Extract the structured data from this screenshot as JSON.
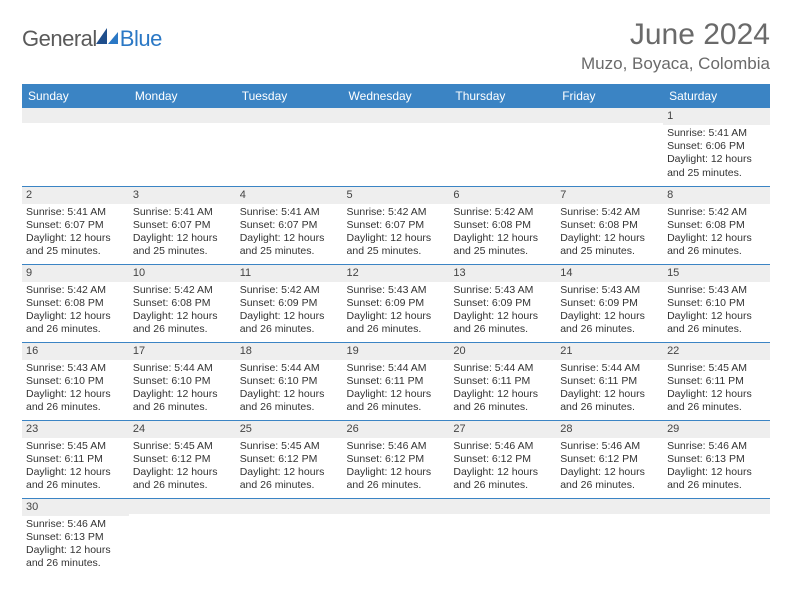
{
  "brand": {
    "general": "General",
    "blue": "Blue"
  },
  "title": "June 2024",
  "location": "Muzo, Boyaca, Colombia",
  "colors": {
    "header_bg": "#3b84c4",
    "header_text": "#ffffff",
    "cell_border": "#3b84c4",
    "daynum_bg": "#eeeeee",
    "text": "#333333",
    "title_text": "#6a6a6a",
    "logo_general": "#5a5a5a",
    "logo_blue": "#2b78c5"
  },
  "day_headers": [
    "Sunday",
    "Monday",
    "Tuesday",
    "Wednesday",
    "Thursday",
    "Friday",
    "Saturday"
  ],
  "weeks": [
    [
      null,
      null,
      null,
      null,
      null,
      null,
      {
        "n": "1",
        "sr": "Sunrise: 5:41 AM",
        "ss": "Sunset: 6:06 PM",
        "d1": "Daylight: 12 hours",
        "d2": "and 25 minutes."
      }
    ],
    [
      {
        "n": "2",
        "sr": "Sunrise: 5:41 AM",
        "ss": "Sunset: 6:07 PM",
        "d1": "Daylight: 12 hours",
        "d2": "and 25 minutes."
      },
      {
        "n": "3",
        "sr": "Sunrise: 5:41 AM",
        "ss": "Sunset: 6:07 PM",
        "d1": "Daylight: 12 hours",
        "d2": "and 25 minutes."
      },
      {
        "n": "4",
        "sr": "Sunrise: 5:41 AM",
        "ss": "Sunset: 6:07 PM",
        "d1": "Daylight: 12 hours",
        "d2": "and 25 minutes."
      },
      {
        "n": "5",
        "sr": "Sunrise: 5:42 AM",
        "ss": "Sunset: 6:07 PM",
        "d1": "Daylight: 12 hours",
        "d2": "and 25 minutes."
      },
      {
        "n": "6",
        "sr": "Sunrise: 5:42 AM",
        "ss": "Sunset: 6:08 PM",
        "d1": "Daylight: 12 hours",
        "d2": "and 25 minutes."
      },
      {
        "n": "7",
        "sr": "Sunrise: 5:42 AM",
        "ss": "Sunset: 6:08 PM",
        "d1": "Daylight: 12 hours",
        "d2": "and 25 minutes."
      },
      {
        "n": "8",
        "sr": "Sunrise: 5:42 AM",
        "ss": "Sunset: 6:08 PM",
        "d1": "Daylight: 12 hours",
        "d2": "and 26 minutes."
      }
    ],
    [
      {
        "n": "9",
        "sr": "Sunrise: 5:42 AM",
        "ss": "Sunset: 6:08 PM",
        "d1": "Daylight: 12 hours",
        "d2": "and 26 minutes."
      },
      {
        "n": "10",
        "sr": "Sunrise: 5:42 AM",
        "ss": "Sunset: 6:08 PM",
        "d1": "Daylight: 12 hours",
        "d2": "and 26 minutes."
      },
      {
        "n": "11",
        "sr": "Sunrise: 5:42 AM",
        "ss": "Sunset: 6:09 PM",
        "d1": "Daylight: 12 hours",
        "d2": "and 26 minutes."
      },
      {
        "n": "12",
        "sr": "Sunrise: 5:43 AM",
        "ss": "Sunset: 6:09 PM",
        "d1": "Daylight: 12 hours",
        "d2": "and 26 minutes."
      },
      {
        "n": "13",
        "sr": "Sunrise: 5:43 AM",
        "ss": "Sunset: 6:09 PM",
        "d1": "Daylight: 12 hours",
        "d2": "and 26 minutes."
      },
      {
        "n": "14",
        "sr": "Sunrise: 5:43 AM",
        "ss": "Sunset: 6:09 PM",
        "d1": "Daylight: 12 hours",
        "d2": "and 26 minutes."
      },
      {
        "n": "15",
        "sr": "Sunrise: 5:43 AM",
        "ss": "Sunset: 6:10 PM",
        "d1": "Daylight: 12 hours",
        "d2": "and 26 minutes."
      }
    ],
    [
      {
        "n": "16",
        "sr": "Sunrise: 5:43 AM",
        "ss": "Sunset: 6:10 PM",
        "d1": "Daylight: 12 hours",
        "d2": "and 26 minutes."
      },
      {
        "n": "17",
        "sr": "Sunrise: 5:44 AM",
        "ss": "Sunset: 6:10 PM",
        "d1": "Daylight: 12 hours",
        "d2": "and 26 minutes."
      },
      {
        "n": "18",
        "sr": "Sunrise: 5:44 AM",
        "ss": "Sunset: 6:10 PM",
        "d1": "Daylight: 12 hours",
        "d2": "and 26 minutes."
      },
      {
        "n": "19",
        "sr": "Sunrise: 5:44 AM",
        "ss": "Sunset: 6:11 PM",
        "d1": "Daylight: 12 hours",
        "d2": "and 26 minutes."
      },
      {
        "n": "20",
        "sr": "Sunrise: 5:44 AM",
        "ss": "Sunset: 6:11 PM",
        "d1": "Daylight: 12 hours",
        "d2": "and 26 minutes."
      },
      {
        "n": "21",
        "sr": "Sunrise: 5:44 AM",
        "ss": "Sunset: 6:11 PM",
        "d1": "Daylight: 12 hours",
        "d2": "and 26 minutes."
      },
      {
        "n": "22",
        "sr": "Sunrise: 5:45 AM",
        "ss": "Sunset: 6:11 PM",
        "d1": "Daylight: 12 hours",
        "d2": "and 26 minutes."
      }
    ],
    [
      {
        "n": "23",
        "sr": "Sunrise: 5:45 AM",
        "ss": "Sunset: 6:11 PM",
        "d1": "Daylight: 12 hours",
        "d2": "and 26 minutes."
      },
      {
        "n": "24",
        "sr": "Sunrise: 5:45 AM",
        "ss": "Sunset: 6:12 PM",
        "d1": "Daylight: 12 hours",
        "d2": "and 26 minutes."
      },
      {
        "n": "25",
        "sr": "Sunrise: 5:45 AM",
        "ss": "Sunset: 6:12 PM",
        "d1": "Daylight: 12 hours",
        "d2": "and 26 minutes."
      },
      {
        "n": "26",
        "sr": "Sunrise: 5:46 AM",
        "ss": "Sunset: 6:12 PM",
        "d1": "Daylight: 12 hours",
        "d2": "and 26 minutes."
      },
      {
        "n": "27",
        "sr": "Sunrise: 5:46 AM",
        "ss": "Sunset: 6:12 PM",
        "d1": "Daylight: 12 hours",
        "d2": "and 26 minutes."
      },
      {
        "n": "28",
        "sr": "Sunrise: 5:46 AM",
        "ss": "Sunset: 6:12 PM",
        "d1": "Daylight: 12 hours",
        "d2": "and 26 minutes."
      },
      {
        "n": "29",
        "sr": "Sunrise: 5:46 AM",
        "ss": "Sunset: 6:13 PM",
        "d1": "Daylight: 12 hours",
        "d2": "and 26 minutes."
      }
    ],
    [
      {
        "n": "30",
        "sr": "Sunrise: 5:46 AM",
        "ss": "Sunset: 6:13 PM",
        "d1": "Daylight: 12 hours",
        "d2": "and 26 minutes."
      },
      null,
      null,
      null,
      null,
      null,
      null
    ]
  ]
}
